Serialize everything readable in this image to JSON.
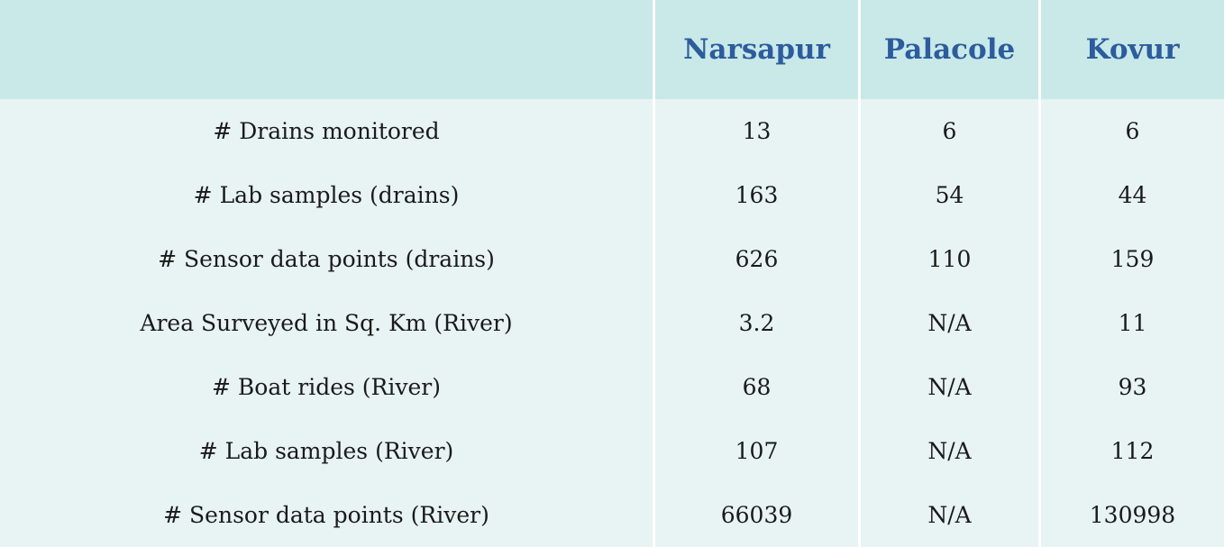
{
  "table": {
    "columns": [
      "",
      "Narsapur",
      "Palacole",
      "Kovur"
    ],
    "rows": [
      {
        "label": "# Drains monitored",
        "values": [
          "13",
          "6",
          "6"
        ]
      },
      {
        "label": "# Lab samples (drains)",
        "values": [
          "163",
          "54",
          "44"
        ]
      },
      {
        "label": "# Sensor data points (drains)",
        "values": [
          "626",
          "110",
          "159"
        ]
      },
      {
        "label": "Area Surveyed in Sq. Km (River)",
        "values": [
          "3.2",
          "N/A",
          "11"
        ]
      },
      {
        "label": "# Boat rides (River)",
        "values": [
          "68",
          "N/A",
          "93"
        ]
      },
      {
        "label": "# Lab samples (River)",
        "values": [
          "107",
          "N/A",
          "112"
        ]
      },
      {
        "label": "# Sensor data points (River)",
        "values": [
          "66039",
          "N/A",
          "130998"
        ]
      }
    ]
  },
  "colors": {
    "header_bg": "#c8e9e7",
    "body_bg": "#e7f4f3",
    "header_text": "#2d5c9e",
    "body_text": "#1a1a1a"
  }
}
